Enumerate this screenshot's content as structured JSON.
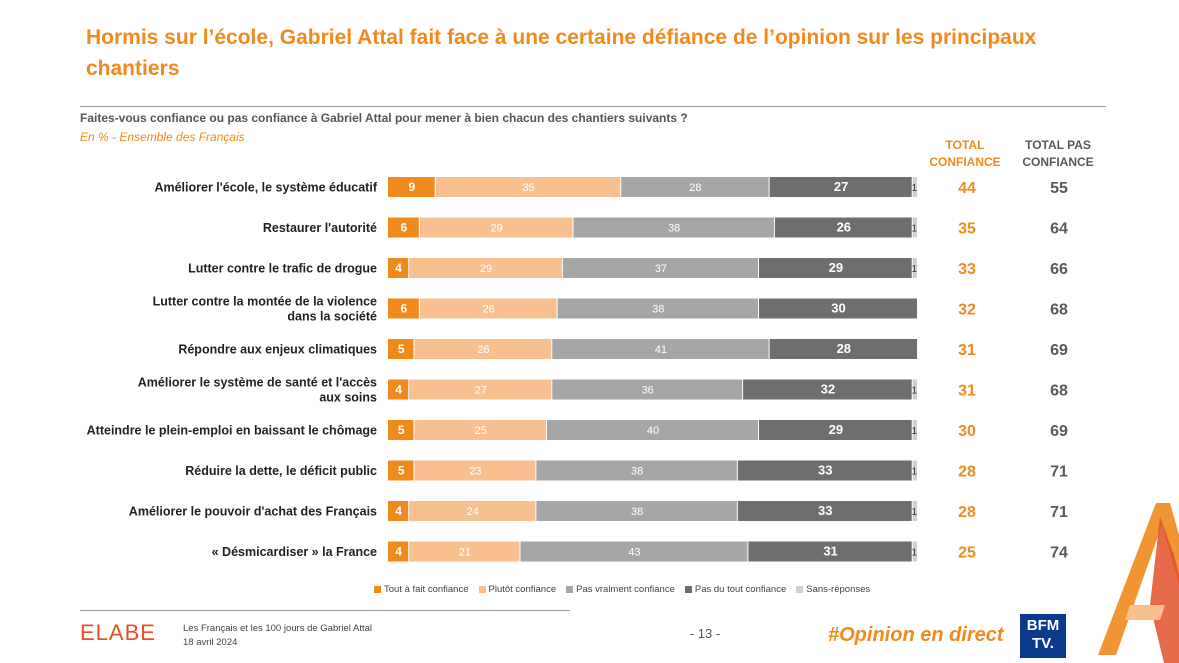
{
  "title": "Hormis sur l’école, Gabriel Attal fait face à une certaine défiance de l’opinion sur les principaux chantiers",
  "question": "Faites-vous confiance ou pas confiance à Gabriel Attal pour mener à bien chacun des chantiers suivants ?",
  "subtitle": "En % - Ensemble des Français",
  "columns": {
    "total_confiance": "TOTAL CONFIANCE",
    "total_pas_confiance": "TOTAL PAS CONFIANCE"
  },
  "colors": {
    "accent": "#F08A1C",
    "tout_a_fait": "#F08A1C",
    "plutot": "#F8C08F",
    "pas_vraiment": "#A6A6A6",
    "pas_du_tout": "#6E6E6E",
    "sans_reponse": "#D0D0D0"
  },
  "chart_data": {
    "type": "bar",
    "orientation": "horizontal-stacked-100",
    "unit": "%",
    "series_names": [
      "Tout à fait confiance",
      "Plutôt confiance",
      "Pas vraiment confiance",
      "Pas du tout confiance",
      "Sans-réponses"
    ],
    "rows": [
      {
        "label": "Améliorer l'école, le système éducatif",
        "values": [
          9,
          35,
          28,
          27,
          1
        ],
        "total_confiance": 44,
        "total_pas_confiance": 55
      },
      {
        "label": "Restaurer l'autorité",
        "values": [
          6,
          29,
          38,
          26,
          1
        ],
        "total_confiance": 35,
        "total_pas_confiance": 64
      },
      {
        "label": "Lutter contre le trafic de drogue",
        "values": [
          4,
          29,
          37,
          29,
          1
        ],
        "total_confiance": 33,
        "total_pas_confiance": 66
      },
      {
        "label": "Lutter contre la montée de la violence dans la société",
        "values": [
          6,
          26,
          38,
          30,
          0
        ],
        "total_confiance": 32,
        "total_pas_confiance": 68
      },
      {
        "label": "Répondre aux enjeux climatiques",
        "values": [
          5,
          26,
          41,
          28,
          0
        ],
        "total_confiance": 31,
        "total_pas_confiance": 69
      },
      {
        "label": "Améliorer le système de santé et l'accès aux soins",
        "values": [
          4,
          27,
          36,
          32,
          1
        ],
        "total_confiance": 31,
        "total_pas_confiance": 68
      },
      {
        "label": "Atteindre le plein-emploi en baissant le chômage",
        "values": [
          5,
          25,
          40,
          29,
          1
        ],
        "total_confiance": 30,
        "total_pas_confiance": 69
      },
      {
        "label": "Réduire la dette, le déficit public",
        "values": [
          5,
          23,
          38,
          33,
          1
        ],
        "total_confiance": 28,
        "total_pas_confiance": 71
      },
      {
        "label": "Améliorer le pouvoir d'achat des Français",
        "values": [
          4,
          24,
          38,
          33,
          1
        ],
        "total_confiance": 28,
        "total_pas_confiance": 71
      },
      {
        "label": "« Désmicardiser » la France",
        "values": [
          4,
          21,
          43,
          31,
          1
        ],
        "total_confiance": 25,
        "total_pas_confiance": 74
      }
    ]
  },
  "footer": {
    "brand": "ELABE",
    "study": "Les Français et les 100 jours de Gabriel Attal",
    "date": "18 avril 2024",
    "page": "- 13 -",
    "hashtag": "#Opinion en direct",
    "channel_line1": "BFM",
    "channel_line2": "TV."
  }
}
